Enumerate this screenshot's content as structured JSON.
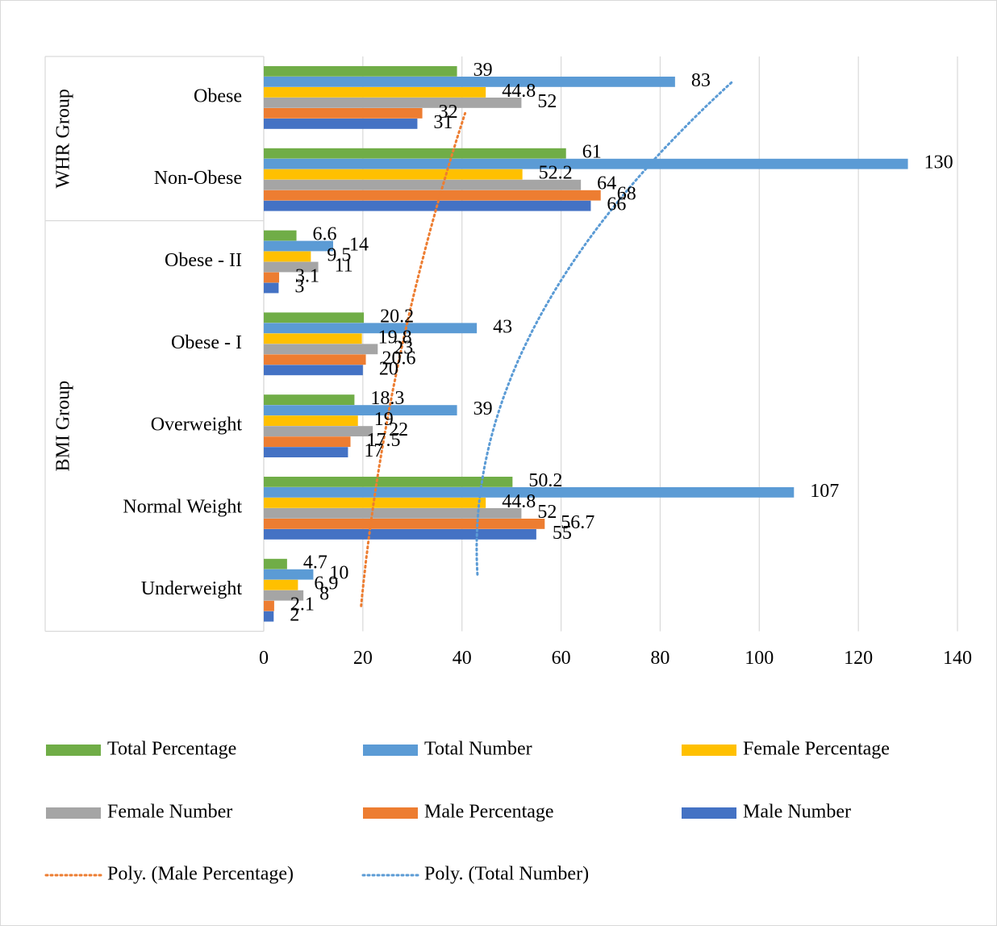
{
  "chart_data": {
    "type": "bar",
    "orientation": "horizontal",
    "title": "",
    "xlim": [
      0,
      140
    ],
    "x_ticks": [
      0,
      20,
      40,
      60,
      80,
      100,
      120,
      140
    ],
    "grid": true,
    "legend_position": "bottom",
    "groups": [
      {
        "name": "WHR Group",
        "categories": [
          "Obese",
          "Non-Obese"
        ]
      },
      {
        "name": "BMI Group",
        "categories": [
          "Obese - II",
          "Obese - I",
          "Overweight",
          "Normal Weight",
          "Underweight"
        ]
      }
    ],
    "categories": [
      "Obese",
      "Non-Obese",
      "Obese - II",
      "Obese - I",
      "Overweight",
      "Normal Weight",
      "Underweight"
    ],
    "series": [
      {
        "name": "Total Percentage",
        "color": "#70AD47",
        "values": [
          39,
          61,
          6.6,
          20.2,
          18.3,
          50.2,
          4.7
        ]
      },
      {
        "name": "Total Number",
        "color": "#5B9BD5",
        "values": [
          83,
          130,
          14,
          43,
          39,
          107,
          10
        ]
      },
      {
        "name": "Female Percentage",
        "color": "#FFC000",
        "values": [
          44.8,
          52.2,
          9.5,
          19.8,
          19,
          44.8,
          6.9
        ]
      },
      {
        "name": "Female Number",
        "color": "#A5A5A5",
        "values": [
          52,
          64,
          11,
          23,
          22,
          52,
          8
        ]
      },
      {
        "name": "Male Percentage",
        "color": "#ED7D31",
        "values": [
          32,
          68,
          3.1,
          20.6,
          17.5,
          56.7,
          2.1
        ]
      },
      {
        "name": "Male Number",
        "color": "#4472C4",
        "values": [
          31,
          66,
          3,
          20,
          17,
          55,
          2
        ]
      }
    ],
    "trendlines": [
      {
        "name": "Poly. (Male Percentage)",
        "color": "#ED7D31",
        "style": "dotted"
      },
      {
        "name": "Poly. (Total Number)",
        "color": "#5B9BD5",
        "style": "dotted"
      }
    ]
  }
}
